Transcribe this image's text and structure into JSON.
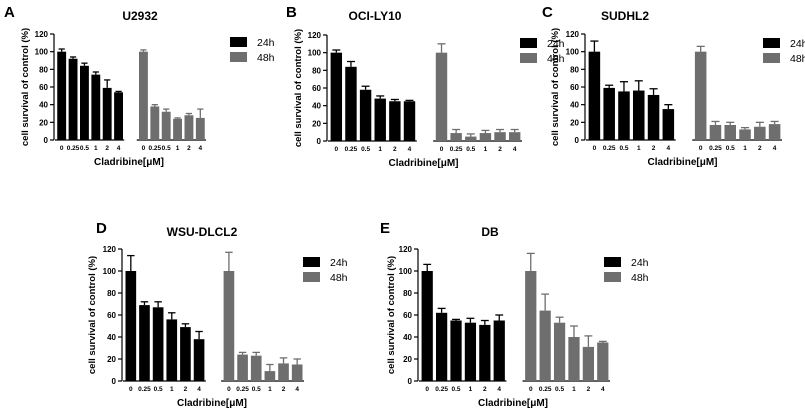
{
  "chart_data": [
    {
      "panel": "A",
      "type": "bar",
      "title": "U2932",
      "xlabel": "Cladribine[μM]",
      "ylabel": "cell survival of control (%)",
      "ylim": [
        0,
        120
      ],
      "yticks": [
        0,
        20,
        40,
        60,
        80,
        100,
        120
      ],
      "categories": [
        "0",
        "0.25",
        "0.5",
        "1",
        "2",
        "4"
      ],
      "series": [
        {
          "name": "24h",
          "color": "#000000",
          "values": [
            100,
            92,
            84,
            74,
            59,
            54
          ],
          "errors": [
            3,
            2,
            3,
            3,
            9,
            1
          ]
        },
        {
          "name": "48h",
          "color": "#6e6e6e",
          "values": [
            100,
            38,
            32,
            24,
            28,
            25
          ],
          "errors": [
            2,
            2,
            3,
            1,
            2,
            10
          ]
        }
      ]
    },
    {
      "panel": "B",
      "type": "bar",
      "title": "OCI-LY10",
      "xlabel": "Cladribine[μM]",
      "ylabel": "cell survival of control (%)",
      "ylim": [
        0,
        120
      ],
      "yticks": [
        0,
        20,
        40,
        60,
        80,
        100,
        120
      ],
      "categories": [
        "0",
        "0.25",
        "0.5",
        "1",
        "2",
        "4"
      ],
      "series": [
        {
          "name": "24h",
          "color": "#000000",
          "values": [
            100,
            84,
            58,
            48,
            45,
            45
          ],
          "errors": [
            3,
            6,
            4,
            3,
            2,
            1
          ]
        },
        {
          "name": "48h",
          "color": "#6e6e6e",
          "values": [
            100,
            9,
            5,
            9,
            10,
            10
          ],
          "errors": [
            10,
            4,
            3,
            3,
            3,
            3
          ]
        }
      ]
    },
    {
      "panel": "C",
      "type": "bar",
      "title": "SUDHL2",
      "xlabel": "Cladribine[μM]",
      "ylabel": "cell survival of control (%)",
      "ylim": [
        0,
        120
      ],
      "yticks": [
        0,
        20,
        40,
        60,
        80,
        100,
        120
      ],
      "categories": [
        "0",
        "0.25",
        "0.5",
        "1",
        "2",
        "4"
      ],
      "series": [
        {
          "name": "24h",
          "color": "#000000",
          "values": [
            100,
            59,
            55,
            56,
            51,
            35
          ],
          "errors": [
            12,
            3,
            11,
            11,
            7,
            5
          ]
        },
        {
          "name": "48h",
          "color": "#6e6e6e",
          "values": [
            100,
            17,
            17,
            12,
            15,
            18
          ],
          "errors": [
            6,
            4,
            3,
            2,
            5,
            3
          ]
        }
      ]
    },
    {
      "panel": "D",
      "type": "bar",
      "title": "WSU-DLCL2",
      "xlabel": "Cladribine[μM]",
      "ylabel": "cell survival of control (%)",
      "ylim": [
        0,
        120
      ],
      "yticks": [
        0,
        20,
        40,
        60,
        80,
        100,
        120
      ],
      "categories": [
        "0",
        "0.25",
        "0.5",
        "1",
        "2",
        "4"
      ],
      "series": [
        {
          "name": "24h",
          "color": "#000000",
          "values": [
            100,
            69,
            67,
            56,
            49,
            38
          ],
          "errors": [
            14,
            3,
            5,
            6,
            3,
            7
          ]
        },
        {
          "name": "48h",
          "color": "#6e6e6e",
          "values": [
            100,
            24,
            23,
            9,
            16,
            15
          ],
          "errors": [
            17,
            2,
            3,
            6,
            5,
            5
          ]
        }
      ]
    },
    {
      "panel": "E",
      "type": "bar",
      "title": "DB",
      "xlabel": "Cladribine[μM]",
      "ylabel": "cell survival of control (%)",
      "ylim": [
        0,
        120
      ],
      "yticks": [
        0,
        20,
        40,
        60,
        80,
        100,
        120
      ],
      "categories": [
        "0",
        "0.25",
        "0.5",
        "1",
        "2",
        "4"
      ],
      "series": [
        {
          "name": "24h",
          "color": "#000000",
          "values": [
            100,
            62,
            55,
            53,
            51,
            55
          ],
          "errors": [
            6,
            4,
            1,
            4,
            4,
            5
          ]
        },
        {
          "name": "48h",
          "color": "#6e6e6e",
          "values": [
            100,
            64,
            53,
            40,
            31,
            35
          ],
          "errors": [
            16,
            15,
            5,
            10,
            10,
            1
          ]
        }
      ]
    }
  ]
}
